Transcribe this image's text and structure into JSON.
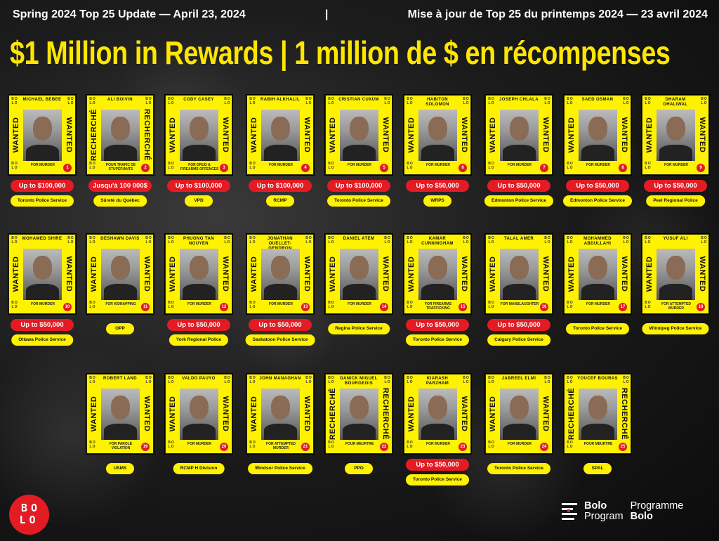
{
  "header": {
    "subtitle_en": "Spring 2024 Top 25 Update — April 23, 2024",
    "separator": "|",
    "subtitle_fr": "Mise à jour de Top 25 du printemps 2024 — 23 avril 2024",
    "title": "$1 Million in Rewards | 1 million de $ en récompenses"
  },
  "card_logo_text": "BO LO",
  "colors": {
    "yellow": "#fff200",
    "red": "#e31b23",
    "title_yellow": "#ffe600"
  },
  "cards": [
    {
      "number": "1",
      "name": "MICHAEL BEBEE",
      "side": "WANTED",
      "crime": "FOR MURDER",
      "reward": "Up to $100,000",
      "agency": "Toronto Police Service"
    },
    {
      "number": "2",
      "name": "ALI BOIVIN",
      "side": "RECHERCHÉ",
      "crime": "POUR TRAFIC DE STUPÉFIANTS",
      "reward": "Jusqu'à 100 000$",
      "agency": "Sûreté du Québec"
    },
    {
      "number": "3",
      "name": "CODY CASEY",
      "side": "WANTED",
      "crime": "FOR DRUG & FIREARMS OFFENCES",
      "reward": "Up to $100,000",
      "agency": "VPD"
    },
    {
      "number": "4",
      "name": "RABIH ALKHALIL",
      "side": "WANTED",
      "crime": "FOR MURDER",
      "reward": "Up to $100,000",
      "agency": "RCMP"
    },
    {
      "number": "5",
      "name": "CRISTIAN CUXUM",
      "side": "WANTED",
      "crime": "FOR MURDER",
      "reward": "Up to $100,000",
      "agency": "Toronto Police Service"
    },
    {
      "number": "6",
      "name": "HABITON SOLOMON",
      "side": "WANTED",
      "crime": "FOR MURDER",
      "reward": "Up to $50,000",
      "agency": "WRPS"
    },
    {
      "number": "7",
      "name": "JOSEPH CHLALA",
      "side": "WANTED",
      "crime": "FOR MURDER",
      "reward": "Up to $50,000",
      "agency": "Edmonton Police Service"
    },
    {
      "number": "8",
      "name": "SAED OSMAN",
      "side": "WANTED",
      "crime": "FOR MURDER",
      "reward": "Up to $50,000",
      "agency": "Edmonton Police Service"
    },
    {
      "number": "9",
      "name": "DHARAM DHALIWAL",
      "side": "WANTED",
      "crime": "FOR MURDER",
      "reward": "Up to $50,000",
      "agency": "Peel Regional Police"
    },
    {
      "number": "10",
      "name": "MOHAMED SHIRE",
      "side": "WANTED",
      "crime": "FOR MURDER",
      "reward": "Up to $50,000",
      "agency": "Ottawa Police Service"
    },
    {
      "number": "11",
      "name": "DESHAWN DAVIS",
      "side": "WANTED",
      "crime": "FOR KIDNAPPING",
      "reward": null,
      "agency": "OPP"
    },
    {
      "number": "12",
      "name": "PHUONG TAN NGUYEN",
      "side": "WANTED",
      "crime": "FOR MURDER",
      "reward": "Up to $50,000",
      "agency": "York Regional Police"
    },
    {
      "number": "13",
      "name": "JONATHAN OUELLET-GENDRON",
      "side": "WANTED",
      "crime": "FOR MURDER",
      "reward": "Up to $50,000",
      "agency": "Saskatoon Police Service"
    },
    {
      "number": "14",
      "name": "DANIEL ATEM",
      "side": "WANTED",
      "crime": "FOR MURDER",
      "reward": null,
      "agency": "Regina Police Service"
    },
    {
      "number": "15",
      "name": "KAMAR CUNNINGHAM",
      "side": "WANTED",
      "crime": "FOR FIREARMS TRAFFICKING",
      "reward": "Up to $50,000",
      "agency": "Toronto Police Service"
    },
    {
      "number": "16",
      "name": "TALAL AMER",
      "side": "WANTED",
      "crime": "FOR MANSLAUGHTER",
      "reward": "Up to $50,000",
      "agency": "Calgary Police Service"
    },
    {
      "number": "17",
      "name": "MOHAMMED ABDULLAHI",
      "side": "WANTED",
      "crime": "FOR MURDER",
      "reward": null,
      "agency": "Toronto Police Service"
    },
    {
      "number": "18",
      "name": "YUSUF ALI",
      "side": "WANTED",
      "crime": "FOR ATTEMPTED MURDER",
      "reward": null,
      "agency": "Winnipeg Police Service"
    },
    {
      "number": "19",
      "name": "ROBERT LAND",
      "side": "WANTED",
      "crime": "FOR PAROLE VIOLATION",
      "reward": null,
      "agency": "USMS"
    },
    {
      "number": "20",
      "name": "VALDO PAUYO",
      "side": "WANTED",
      "crime": "FOR MURDER",
      "reward": null,
      "agency": "RCMP H Division"
    },
    {
      "number": "21",
      "name": "JOHN MANAGHAN",
      "side": "WANTED",
      "crime": "FOR ATTEMPTED MURDER",
      "reward": null,
      "agency": "Windsor Police Service"
    },
    {
      "number": "22",
      "name": "DANICK MIGUEL BOURGEOIS",
      "side": "RECHERCHÉ",
      "crime": "POUR MEURTRE",
      "reward": null,
      "agency": "PPO"
    },
    {
      "number": "23",
      "name": "KIARASH PARZHAM",
      "side": "WANTED",
      "crime": "FOR MURDER",
      "reward": "Up to $50,000",
      "agency": "Toronto Police Service"
    },
    {
      "number": "24",
      "name": "JABREEL ELMI",
      "side": "WANTED",
      "crime": "FOR MURDER",
      "reward": null,
      "agency": "Toronto Police Service"
    },
    {
      "number": "25",
      "name": "YOUCEF BOURAS",
      "side": "RECHERCHÉ",
      "crime": "POUR MEURTRE",
      "reward": null,
      "agency": "SPAL"
    }
  ],
  "footer": {
    "bolo_logo_text": "BOLO",
    "program_en_line1": "Bolo",
    "program_en_line2": "Program",
    "program_fr_line1": "Programme",
    "program_fr_line2": "Bolo"
  }
}
